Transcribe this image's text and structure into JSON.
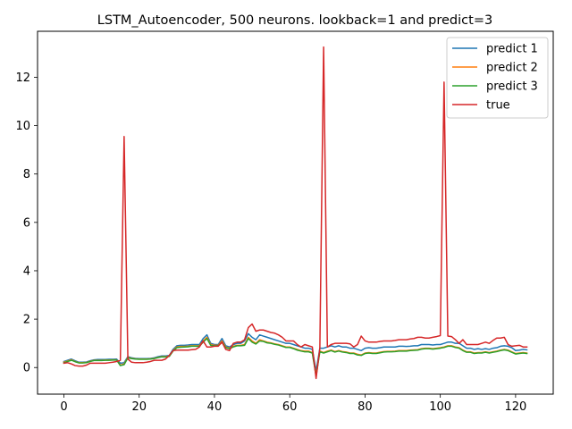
{
  "chart_data": {
    "type": "line",
    "title": "LSTM_Autoencoder, 500 neurons. lookback=1 and predict=3",
    "xlabel": "",
    "ylabel": "",
    "xlim": [
      -7,
      130
    ],
    "ylim": [
      -1.1,
      13.9
    ],
    "xticks": [
      0,
      20,
      40,
      60,
      80,
      100,
      120
    ],
    "yticks": [
      0,
      2,
      4,
      6,
      8,
      10,
      12
    ],
    "grid": false,
    "legend_position": "top-right",
    "series": [
      {
        "name": "predict 1",
        "color": "#1f77b4",
        "values": [
          0.25,
          0.3,
          0.35,
          0.28,
          0.22,
          0.22,
          0.23,
          0.28,
          0.32,
          0.33,
          0.33,
          0.33,
          0.34,
          0.34,
          0.35,
          0.18,
          0.2,
          0.45,
          0.4,
          0.38,
          0.37,
          0.37,
          0.37,
          0.38,
          0.4,
          0.45,
          0.48,
          0.48,
          0.5,
          0.75,
          0.9,
          0.92,
          0.92,
          0.93,
          0.95,
          0.95,
          0.95,
          1.2,
          1.35,
          1.0,
          0.95,
          0.95,
          1.2,
          0.9,
          0.85,
          0.95,
          1.0,
          1.0,
          1.1,
          1.4,
          1.25,
          1.15,
          1.35,
          1.3,
          1.25,
          1.2,
          1.15,
          1.1,
          1.05,
          1.0,
          1.0,
          0.95,
          0.9,
          0.85,
          0.8,
          0.8,
          0.75,
          -0.15,
          0.8,
          0.8,
          0.85,
          0.9,
          0.85,
          0.9,
          0.85,
          0.85,
          0.8,
          0.8,
          0.75,
          0.7,
          0.8,
          0.82,
          0.8,
          0.8,
          0.82,
          0.85,
          0.85,
          0.85,
          0.85,
          0.88,
          0.88,
          0.87,
          0.88,
          0.9,
          0.9,
          0.95,
          0.95,
          0.95,
          0.93,
          0.95,
          0.95,
          1.0,
          1.05,
          1.05,
          1.0,
          1.0,
          0.9,
          0.8,
          0.8,
          0.75,
          0.78,
          0.75,
          0.78,
          0.75,
          0.8,
          0.82,
          0.88,
          0.9,
          0.88,
          0.82,
          0.7,
          0.72,
          0.75,
          0.73
        ]
      },
      {
        "name": "predict 2",
        "color": "#ff7f0e",
        "values": [
          0.22,
          0.27,
          0.32,
          0.25,
          0.2,
          0.2,
          0.21,
          0.26,
          0.3,
          0.3,
          0.3,
          0.31,
          0.31,
          0.32,
          0.32,
          0.1,
          0.15,
          0.42,
          0.38,
          0.36,
          0.35,
          0.35,
          0.35,
          0.36,
          0.38,
          0.42,
          0.45,
          0.45,
          0.47,
          0.7,
          0.85,
          0.87,
          0.87,
          0.88,
          0.9,
          0.9,
          0.9,
          1.1,
          1.25,
          0.95,
          0.92,
          0.92,
          1.1,
          0.85,
          0.8,
          0.88,
          0.92,
          0.92,
          0.95,
          1.25,
          1.1,
          1.0,
          1.15,
          1.1,
          1.05,
          1.02,
          0.98,
          0.95,
          0.9,
          0.85,
          0.85,
          0.8,
          0.75,
          0.7,
          0.68,
          0.68,
          0.62,
          -0.3,
          0.68,
          0.62,
          0.68,
          0.72,
          0.66,
          0.7,
          0.66,
          0.64,
          0.6,
          0.6,
          0.55,
          0.52,
          0.6,
          0.62,
          0.6,
          0.6,
          0.63,
          0.66,
          0.67,
          0.67,
          0.68,
          0.7,
          0.7,
          0.7,
          0.72,
          0.73,
          0.74,
          0.78,
          0.8,
          0.8,
          0.78,
          0.8,
          0.82,
          0.85,
          0.9,
          0.9,
          0.85,
          0.82,
          0.72,
          0.65,
          0.65,
          0.6,
          0.62,
          0.62,
          0.65,
          0.62,
          0.65,
          0.68,
          0.72,
          0.75,
          0.72,
          0.65,
          0.58,
          0.6,
          0.62,
          0.6
        ]
      },
      {
        "name": "predict 3",
        "color": "#2ca02c",
        "values": [
          0.2,
          0.25,
          0.3,
          0.24,
          0.19,
          0.19,
          0.2,
          0.25,
          0.29,
          0.29,
          0.29,
          0.3,
          0.3,
          0.31,
          0.31,
          0.08,
          0.12,
          0.4,
          0.37,
          0.35,
          0.34,
          0.34,
          0.34,
          0.35,
          0.37,
          0.41,
          0.44,
          0.44,
          0.46,
          0.68,
          0.82,
          0.84,
          0.85,
          0.86,
          0.88,
          0.88,
          0.88,
          1.05,
          1.2,
          0.92,
          0.9,
          0.9,
          1.05,
          0.82,
          0.78,
          0.85,
          0.9,
          0.9,
          0.92,
          1.2,
          1.05,
          0.97,
          1.1,
          1.08,
          1.02,
          1.0,
          0.96,
          0.93,
          0.88,
          0.83,
          0.83,
          0.78,
          0.72,
          0.68,
          0.65,
          0.65,
          0.6,
          -0.35,
          0.65,
          0.6,
          0.65,
          0.7,
          0.64,
          0.68,
          0.64,
          0.62,
          0.58,
          0.58,
          0.52,
          0.5,
          0.58,
          0.6,
          0.58,
          0.58,
          0.61,
          0.64,
          0.65,
          0.65,
          0.66,
          0.68,
          0.68,
          0.68,
          0.7,
          0.71,
          0.72,
          0.76,
          0.78,
          0.78,
          0.76,
          0.78,
          0.8,
          0.83,
          0.88,
          0.88,
          0.83,
          0.8,
          0.7,
          0.63,
          0.63,
          0.58,
          0.6,
          0.6,
          0.63,
          0.6,
          0.63,
          0.66,
          0.7,
          0.73,
          0.7,
          0.63,
          0.56,
          0.58,
          0.6,
          0.58
        ]
      },
      {
        "name": "true",
        "color": "#d62728",
        "values": [
          0.18,
          0.2,
          0.15,
          0.08,
          0.06,
          0.06,
          0.1,
          0.18,
          0.18,
          0.18,
          0.18,
          0.18,
          0.2,
          0.22,
          0.25,
          0.3,
          9.55,
          0.35,
          0.22,
          0.2,
          0.2,
          0.2,
          0.22,
          0.25,
          0.3,
          0.3,
          0.3,
          0.35,
          0.5,
          0.7,
          0.72,
          0.72,
          0.72,
          0.72,
          0.74,
          0.75,
          0.85,
          1.1,
          0.85,
          0.85,
          0.88,
          0.88,
          1.05,
          0.75,
          0.7,
          1.0,
          1.05,
          1.05,
          1.15,
          1.65,
          1.8,
          1.5,
          1.55,
          1.55,
          1.5,
          1.45,
          1.42,
          1.35,
          1.25,
          1.1,
          1.1,
          1.1,
          0.95,
          0.85,
          0.95,
          0.9,
          0.85,
          -0.45,
          0.8,
          13.25,
          0.85,
          0.95,
          1.0,
          1.0,
          1.0,
          1.0,
          0.98,
          0.85,
          0.95,
          1.3,
          1.1,
          1.05,
          1.05,
          1.05,
          1.08,
          1.1,
          1.1,
          1.1,
          1.12,
          1.15,
          1.15,
          1.15,
          1.18,
          1.2,
          1.25,
          1.25,
          1.22,
          1.22,
          1.25,
          1.28,
          1.32,
          11.8,
          1.3,
          1.28,
          1.15,
          1.0,
          1.15,
          0.95,
          0.95,
          0.95,
          0.95,
          1.0,
          1.05,
          1.0,
          1.12,
          1.22,
          1.22,
          1.25,
          0.95,
          0.88,
          0.9,
          0.92,
          0.85,
          0.85
        ]
      }
    ]
  }
}
